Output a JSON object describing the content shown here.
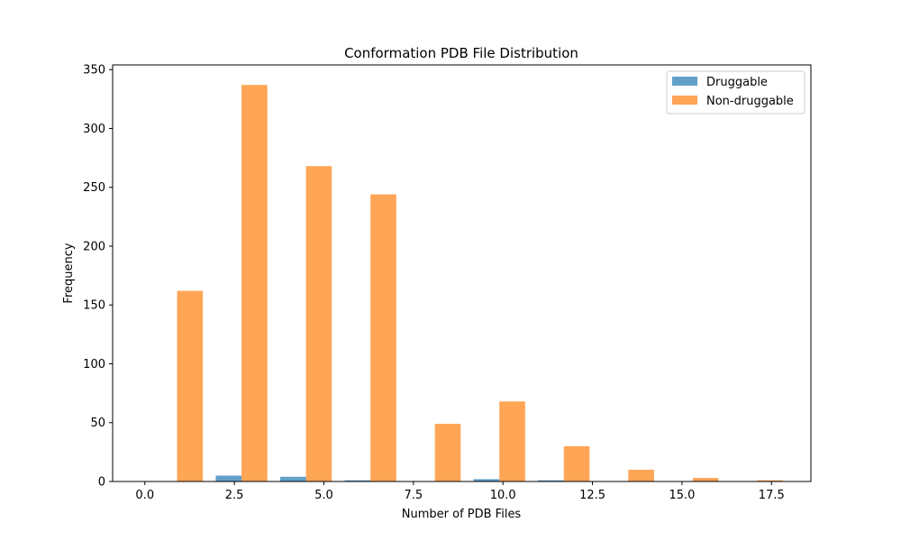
{
  "chart_data": {
    "type": "bar",
    "title": "Conformation PDB File Distribution",
    "xlabel": "Number of PDB Files",
    "ylabel": "Frequency",
    "xlim": [
      -0.9,
      18.6
    ],
    "ylim": [
      0,
      354
    ],
    "xticks": [
      0.0,
      2.5,
      5.0,
      7.5,
      10.0,
      12.5,
      15.0,
      17.5
    ],
    "xtick_labels": [
      "0.0",
      "2.5",
      "5.0",
      "7.5",
      "10.0",
      "12.5",
      "15.0",
      "17.5"
    ],
    "yticks": [
      0,
      50,
      100,
      150,
      200,
      250,
      300,
      350
    ],
    "ytick_labels": [
      "0",
      "50",
      "100",
      "150",
      "200",
      "250",
      "300",
      "350"
    ],
    "bin_edges": [
      0,
      1.8,
      3.6,
      5.4,
      7.2,
      9.0,
      10.8,
      12.6,
      14.4,
      16.2,
      18.0
    ],
    "series": [
      {
        "name": "Druggable",
        "color": "#1f77b4",
        "values": [
          0,
          5,
          4,
          1,
          0,
          2,
          1,
          0,
          0,
          0
        ]
      },
      {
        "name": "Non-druggable",
        "color": "#ff7f0e",
        "values": [
          162,
          337,
          268,
          244,
          49,
          68,
          30,
          10,
          3,
          1
        ]
      }
    ],
    "bar_alpha": 0.7,
    "legend_position": "top-right",
    "grid": false
  }
}
